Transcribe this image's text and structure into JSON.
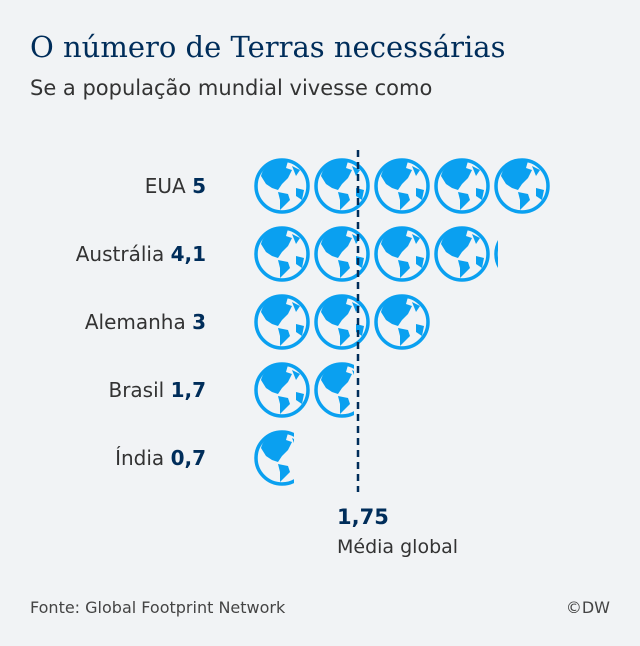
{
  "chart_data": {
    "type": "pictogram",
    "title": "O número de Terras necessárias",
    "subtitle": "Se a população mundial vivesse como",
    "icon": "globe-icon",
    "icon_color": "#0aa0f0",
    "categories": [
      "EUA",
      "Austrália",
      "Alemanha",
      "Brasil",
      "Índia"
    ],
    "value_labels": [
      "5",
      "4,1",
      "3",
      "1,7",
      "0,7"
    ],
    "values": [
      5,
      4.1,
      3,
      1.7,
      0.7
    ],
    "reference_line": {
      "value": 1.75,
      "value_label": "1,75",
      "label": "Média global"
    }
  },
  "footer": {
    "source": "Fonte: Global Footprint Network",
    "credit": "©DW"
  }
}
